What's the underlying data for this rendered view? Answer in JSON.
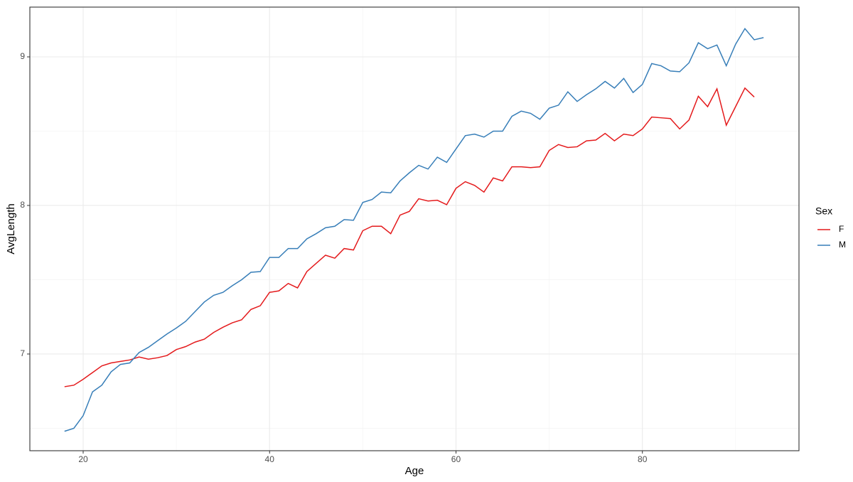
{
  "chart_data": {
    "type": "line",
    "x_label": "Age",
    "y_label": "AvgLength",
    "legend_title": "Sex",
    "x": [
      18,
      19,
      20,
      21,
      22,
      23,
      24,
      25,
      26,
      27,
      28,
      29,
      30,
      31,
      32,
      33,
      34,
      35,
      36,
      37,
      38,
      39,
      40,
      41,
      42,
      43,
      44,
      45,
      46,
      47,
      48,
      49,
      50,
      51,
      52,
      53,
      54,
      55,
      56,
      57,
      58,
      59,
      60,
      61,
      62,
      63,
      64,
      65,
      66,
      67,
      68,
      69,
      70,
      71,
      72,
      73,
      74,
      75,
      76,
      77,
      78,
      79,
      80,
      81,
      82,
      83,
      84,
      85,
      86,
      87,
      88,
      89,
      90,
      91,
      92,
      93
    ],
    "series": [
      {
        "name": "F",
        "color": "#e41a1c",
        "values": [
          6.78,
          6.79,
          6.83,
          6.875,
          6.92,
          6.94,
          6.95,
          6.96,
          6.98,
          6.965,
          6.975,
          6.99,
          7.03,
          7.05,
          7.08,
          7.1,
          7.145,
          7.18,
          7.21,
          7.23,
          7.3,
          7.325,
          7.415,
          7.425,
          7.475,
          7.445,
          7.555,
          7.61,
          7.665,
          7.645,
          7.71,
          7.7,
          7.83,
          7.86,
          7.86,
          7.81,
          7.935,
          7.96,
          8.045,
          8.03,
          8.035,
          8.005,
          8.115,
          8.16,
          8.135,
          8.09,
          8.185,
          8.165,
          8.26,
          8.26,
          8.255,
          8.26,
          8.37,
          8.41,
          8.39,
          8.395,
          8.435,
          8.44,
          8.485,
          8.435,
          8.48,
          8.47,
          8.515,
          8.595,
          8.59,
          8.585,
          8.515,
          8.575,
          8.735,
          8.665,
          8.785,
          8.54,
          8.665,
          8.79,
          8.73,
          null
        ]
      },
      {
        "name": "M",
        "color": "#377eb8",
        "values": [
          6.48,
          6.5,
          6.585,
          6.745,
          6.79,
          6.88,
          6.93,
          6.94,
          7.01,
          7.045,
          7.09,
          7.135,
          7.175,
          7.22,
          7.285,
          7.35,
          7.395,
          7.415,
          7.46,
          7.5,
          7.55,
          7.555,
          7.65,
          7.65,
          7.71,
          7.71,
          7.775,
          7.81,
          7.85,
          7.86,
          7.905,
          7.9,
          8.02,
          8.04,
          8.09,
          8.085,
          8.165,
          8.22,
          8.27,
          8.245,
          8.325,
          8.29,
          8.38,
          8.47,
          8.48,
          8.46,
          8.5,
          8.5,
          8.6,
          8.635,
          8.62,
          8.58,
          8.655,
          8.675,
          8.765,
          8.7,
          8.745,
          8.785,
          8.835,
          8.79,
          8.855,
          8.76,
          8.815,
          8.955,
          8.94,
          8.905,
          8.9,
          8.96,
          9.095,
          9.055,
          9.08,
          8.94,
          9.085,
          9.19,
          9.115,
          9.13
        ]
      }
    ],
    "xlim": [
      14.28,
      96.8
    ],
    "ylim": [
      6.349,
      9.335
    ],
    "xticks": [
      20,
      40,
      60,
      80
    ],
    "yticks": [
      7,
      8,
      9
    ],
    "grid": true,
    "legend": "right"
  }
}
